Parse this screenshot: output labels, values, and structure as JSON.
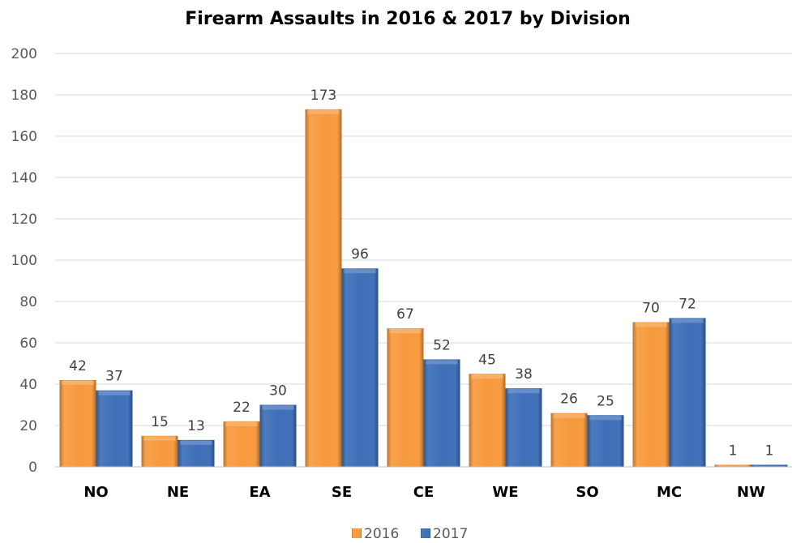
{
  "chart_data": {
    "type": "bar",
    "title": "Firearm Assaults in 2016 & 2017 by Division",
    "xlabel": "",
    "ylabel": "",
    "categories": [
      "NO",
      "NE",
      "EA",
      "SE",
      "CE",
      "WE",
      "SO",
      "MC",
      "NW"
    ],
    "series": [
      {
        "name": "2016",
        "values": [
          42,
          15,
          22,
          173,
          67,
          45,
          26,
          70,
          1
        ],
        "color": "#f79a3e"
      },
      {
        "name": "2017",
        "values": [
          37,
          13,
          30,
          96,
          52,
          38,
          25,
          72,
          1
        ],
        "color": "#3e6fb8"
      }
    ],
    "ylim": [
      0,
      200
    ],
    "yticks": [
      0,
      20,
      40,
      60,
      80,
      100,
      120,
      140,
      160,
      180,
      200
    ],
    "grid": true,
    "legend_position": "bottom-center",
    "data_labels": true
  }
}
